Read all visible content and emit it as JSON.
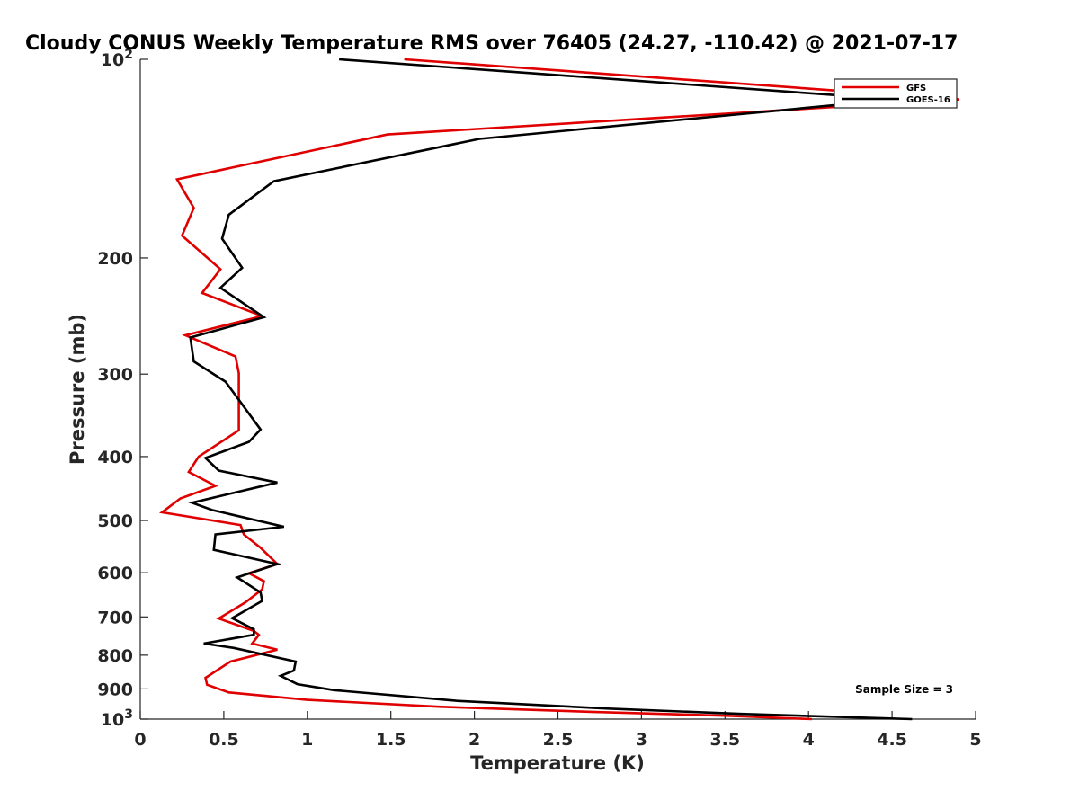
{
  "chart_data": {
    "type": "line",
    "title": "Cloudy CONUS Weekly Temperature RMS over 76405 (24.27, -110.42) @ 2021-07-17",
    "xlabel": "Temperature (K)",
    "ylabel": "Pressure (mb)",
    "xlim": [
      0,
      5
    ],
    "ylim": [
      100,
      1000
    ],
    "y_scale": "log",
    "y_reversed": true,
    "xticks": [
      "0",
      "0.5",
      "1",
      "1.5",
      "2",
      "2.5",
      "3",
      "3.5",
      "4",
      "4.5",
      "5"
    ],
    "yticks": [
      {
        "value": 100,
        "base": "10",
        "exp": "2"
      },
      {
        "value": 200,
        "label": "200"
      },
      {
        "value": 300,
        "label": "300"
      },
      {
        "value": 400,
        "label": "400"
      },
      {
        "value": 500,
        "label": "500"
      },
      {
        "value": 600,
        "label": "600"
      },
      {
        "value": 700,
        "label": "700"
      },
      {
        "value": 800,
        "label": "800"
      },
      {
        "value": 900,
        "label": "900"
      },
      {
        "value": 1000,
        "base": "10",
        "exp": "3"
      }
    ],
    "grid": false,
    "legend_position": "top-right",
    "annotation": "Sample Size = 3",
    "series": [
      {
        "name": "GFS",
        "color": "#e00000",
        "points": [
          [
            1.58,
            100
          ],
          [
            4.9,
            115
          ],
          [
            1.48,
            130
          ],
          [
            0.22,
            152
          ],
          [
            0.32,
            168
          ],
          [
            0.25,
            185
          ],
          [
            0.48,
            208
          ],
          [
            0.37,
            226
          ],
          [
            0.73,
            245
          ],
          [
            0.27,
            262
          ],
          [
            0.57,
            282
          ],
          [
            0.59,
            299
          ],
          [
            0.59,
            330
          ],
          [
            0.59,
            365
          ],
          [
            0.35,
            400
          ],
          [
            0.29,
            422
          ],
          [
            0.45,
            443
          ],
          [
            0.24,
            463
          ],
          [
            0.13,
            486
          ],
          [
            0.6,
            508
          ],
          [
            0.62,
            525
          ],
          [
            0.72,
            550
          ],
          [
            0.82,
            582
          ],
          [
            0.65,
            601
          ],
          [
            0.74,
            618
          ],
          [
            0.73,
            636
          ],
          [
            0.63,
            665
          ],
          [
            0.47,
            704
          ],
          [
            0.68,
            735
          ],
          [
            0.71,
            745
          ],
          [
            0.67,
            768
          ],
          [
            0.82,
            785
          ],
          [
            0.54,
            818
          ],
          [
            0.39,
            866
          ],
          [
            0.4,
            887
          ],
          [
            0.53,
            911
          ],
          [
            1.0,
            935
          ],
          [
            1.8,
            958
          ],
          [
            2.7,
            975
          ],
          [
            3.5,
            988
          ],
          [
            4.02,
            1000
          ]
        ]
      },
      {
        "name": "GOES-16",
        "color": "#000000",
        "points": [
          [
            1.19,
            100
          ],
          [
            4.52,
            115
          ],
          [
            2.03,
            132
          ],
          [
            0.8,
            153
          ],
          [
            0.53,
            172
          ],
          [
            0.49,
            187
          ],
          [
            0.61,
            207
          ],
          [
            0.48,
            222
          ],
          [
            0.74,
            246
          ],
          [
            0.3,
            264
          ],
          [
            0.32,
            287
          ],
          [
            0.51,
            308
          ],
          [
            0.72,
            364
          ],
          [
            0.65,
            380
          ],
          [
            0.39,
            402
          ],
          [
            0.47,
            420
          ],
          [
            0.82,
            438
          ],
          [
            0.31,
            470
          ],
          [
            0.43,
            482
          ],
          [
            0.86,
            511
          ],
          [
            0.45,
            525
          ],
          [
            0.44,
            554
          ],
          [
            0.82,
            582
          ],
          [
            0.58,
            610
          ],
          [
            0.72,
            643
          ],
          [
            0.73,
            662
          ],
          [
            0.55,
            703
          ],
          [
            0.68,
            731
          ],
          [
            0.68,
            745
          ],
          [
            0.38,
            768
          ],
          [
            0.56,
            780
          ],
          [
            0.93,
            818
          ],
          [
            0.92,
            844
          ],
          [
            0.84,
            860
          ],
          [
            0.94,
            885
          ],
          [
            1.16,
            904
          ],
          [
            1.89,
            938
          ],
          [
            2.8,
            964
          ],
          [
            3.6,
            982
          ],
          [
            4.62,
            1000
          ]
        ]
      }
    ]
  }
}
